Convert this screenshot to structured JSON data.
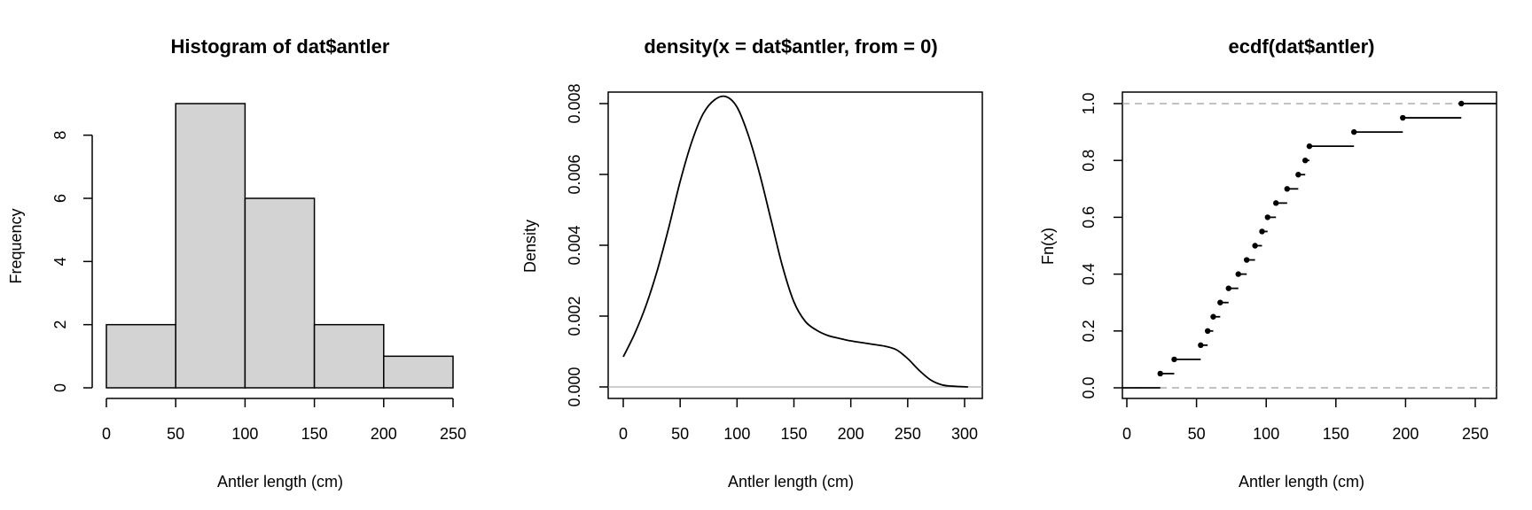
{
  "colors": {
    "bar_fill": "#d3d3d3",
    "line": "#000000",
    "reference_line": "#9e9e9e",
    "background": "#ffffff"
  },
  "chart_data": [
    {
      "type": "bar",
      "title": "Histogram of dat$antler",
      "xlabel": "Antler length (cm)",
      "ylabel": "Frequency",
      "bins": [
        {
          "from": 0,
          "to": 50,
          "count": 2
        },
        {
          "from": 50,
          "to": 100,
          "count": 9
        },
        {
          "from": 100,
          "to": 150,
          "count": 6
        },
        {
          "from": 150,
          "to": 200,
          "count": 2
        },
        {
          "from": 200,
          "to": 250,
          "count": 1
        }
      ],
      "xlim": [
        0,
        250
      ],
      "ylim": [
        0,
        9
      ],
      "xticks": [
        0,
        50,
        100,
        150,
        200,
        250
      ],
      "yticks": [
        0,
        2,
        4,
        6,
        8
      ]
    },
    {
      "type": "line",
      "title": "density(x = dat$antler, from = 0)",
      "xlabel": "Antler length (cm)",
      "ylabel": "Density",
      "x": [
        0,
        10,
        20,
        30,
        40,
        50,
        60,
        70,
        80,
        90,
        100,
        110,
        120,
        130,
        140,
        150,
        160,
        170,
        180,
        190,
        200,
        210,
        220,
        230,
        240,
        250,
        260,
        270,
        280,
        290,
        303
      ],
      "y": [
        0.00085,
        0.0015,
        0.0023,
        0.0033,
        0.0045,
        0.0058,
        0.0069,
        0.0077,
        0.0081,
        0.0082,
        0.0079,
        0.0071,
        0.006,
        0.0047,
        0.0034,
        0.0024,
        0.00185,
        0.0016,
        0.00145,
        0.00137,
        0.0013,
        0.00125,
        0.0012,
        0.00115,
        0.00105,
        0.0008,
        0.00047,
        0.0002,
        6e-05,
        2e-05,
        0.0
      ],
      "reference_y": 0,
      "xlim": [
        -10,
        315
      ],
      "ylim": [
        -0.00025,
        0.0086
      ],
      "xticks": [
        0,
        50,
        100,
        150,
        200,
        250,
        300
      ],
      "yticks": [
        0.0,
        0.002,
        0.004,
        0.006,
        0.008
      ],
      "ytick_labels": [
        "0.000",
        "0.002",
        "0.004",
        "0.006",
        "0.008"
      ]
    },
    {
      "type": "line",
      "subtype": "step",
      "title": "ecdf(dat$antler)",
      "xlabel": "Antler length (cm)",
      "ylabel": "Fn(x)",
      "x": [
        24,
        34,
        53,
        58,
        62,
        67,
        73,
        80,
        86,
        92,
        97,
        101,
        107,
        115,
        123,
        128,
        131,
        163,
        198,
        240
      ],
      "y": [
        0.05,
        0.1,
        0.15,
        0.2,
        0.25,
        0.3,
        0.35,
        0.4,
        0.45,
        0.5,
        0.55,
        0.6,
        0.65,
        0.7,
        0.75,
        0.8,
        0.85,
        0.9,
        0.95,
        1.0
      ],
      "reference_y": [
        0,
        1
      ],
      "xlim": [
        -2,
        266
      ],
      "ylim": [
        -0.04,
        1.04
      ],
      "xticks": [
        0,
        50,
        100,
        150,
        200,
        250
      ],
      "yticks": [
        0.0,
        0.2,
        0.4,
        0.6,
        0.8,
        1.0
      ],
      "ytick_labels": [
        "0.0",
        "0.2",
        "0.4",
        "0.6",
        "0.8",
        "1.0"
      ]
    }
  ]
}
